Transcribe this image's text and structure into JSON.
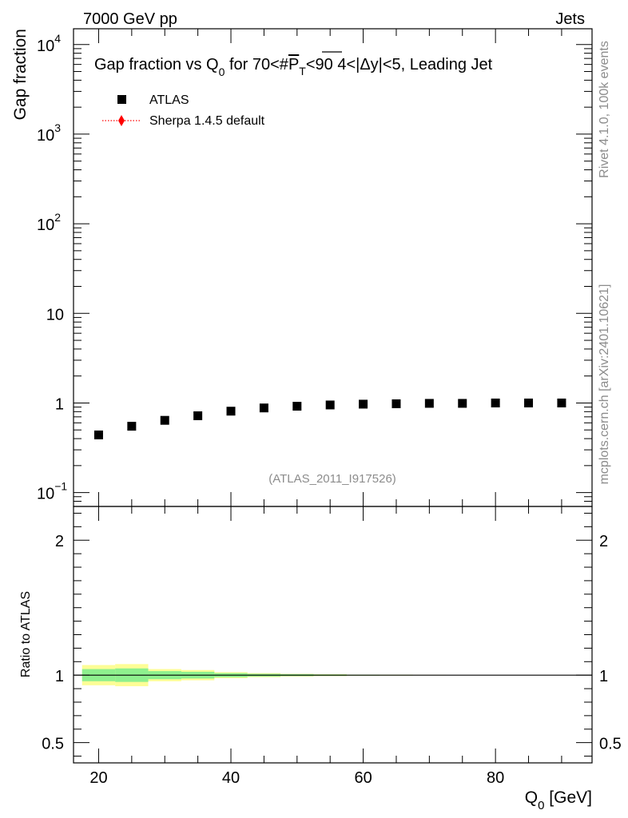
{
  "header": {
    "energy_label": "7000 GeV pp",
    "process_label": "Jets"
  },
  "side_labels": {
    "rivet": "Rivet 4.1.0,  100k events",
    "site": "mcplots.cern.ch [arXiv:2401.10621]"
  },
  "chart_data": [
    {
      "type": "scatter",
      "title_parts": {
        "pre": "Gap fraction vs Q",
        "sub": "0",
        "mid": " for 70<#",
        "over": "P",
        "over_sub": "T",
        "post": "<90  4<|Δy|<5, Leading Jet"
      },
      "ylabel": "Gap fraction",
      "yscale": "log",
      "ylim": [
        0.07,
        15000
      ],
      "xlim": [
        16.2,
        94.6
      ],
      "y_tick_labels": [
        {
          "value": 10000,
          "base": "10",
          "exp": "4"
        },
        {
          "value": 1000,
          "base": "10",
          "exp": "3"
        },
        {
          "value": 100,
          "base": "10",
          "exp": "2"
        },
        {
          "value": 10,
          "base": "10",
          "exp": ""
        },
        {
          "value": 1,
          "base": "1",
          "exp": ""
        },
        {
          "value": 0.1,
          "base": "10",
          "exp": "−1"
        }
      ],
      "watermark": "(ATLAS_2011_I917526)",
      "legend_position": "top-left",
      "series": [
        {
          "name": "ATLAS",
          "marker": "square",
          "color": "#000000",
          "x": [
            20,
            25,
            30,
            35,
            40,
            45,
            50,
            55,
            60,
            65,
            70,
            75,
            80,
            85,
            90
          ],
          "y": [
            0.44,
            0.55,
            0.64,
            0.72,
            0.81,
            0.88,
            0.92,
            0.95,
            0.97,
            0.98,
            0.99,
            0.99,
            1.0,
            1.0,
            1.0
          ]
        },
        {
          "name": "Sherpa 1.4.5 default",
          "marker": "diamond",
          "color": "#ff0000",
          "line": "dotted",
          "x": [],
          "y": []
        }
      ]
    },
    {
      "type": "line",
      "ylabel": "Ratio to ATLAS",
      "xlabel_parts": {
        "pre": "Q",
        "sub": "0",
        "post": " [GeV]"
      },
      "ylim": [
        0.35,
        2.25
      ],
      "xlim": [
        16.2,
        94.6
      ],
      "x_ticks": [
        20,
        40,
        60,
        80
      ],
      "y_ticks": [
        0.5,
        1,
        2
      ],
      "reference_line": 1,
      "bands": {
        "bin_edges": [
          17.5,
          22.5,
          27.5,
          32.5,
          37.5,
          42.5,
          47.5,
          52.5,
          57.5,
          62.5,
          67.5,
          72.5
        ],
        "inner": [
          [
            0.955,
            1.045
          ],
          [
            0.95,
            1.05
          ],
          [
            0.97,
            1.03
          ],
          [
            0.975,
            1.025
          ],
          [
            0.985,
            1.015
          ],
          [
            0.99,
            1.01
          ],
          [
            0.993,
            1.007
          ],
          [
            0.995,
            1.005
          ],
          [
            0.997,
            1.003
          ],
          [
            0.998,
            1.002
          ],
          [
            0.999,
            1.001
          ]
        ],
        "outer": [
          [
            0.925,
            1.075
          ],
          [
            0.918,
            1.082
          ],
          [
            0.955,
            1.045
          ],
          [
            0.962,
            1.038
          ],
          [
            0.978,
            1.022
          ],
          [
            0.985,
            1.015
          ],
          [
            0.99,
            1.01
          ],
          [
            0.993,
            1.007
          ],
          [
            0.996,
            1.004
          ],
          [
            0.997,
            1.003
          ],
          [
            0.998,
            1.002
          ]
        ],
        "inner_color": "#8ef08e",
        "outer_color": "#fdfd96"
      }
    }
  ]
}
